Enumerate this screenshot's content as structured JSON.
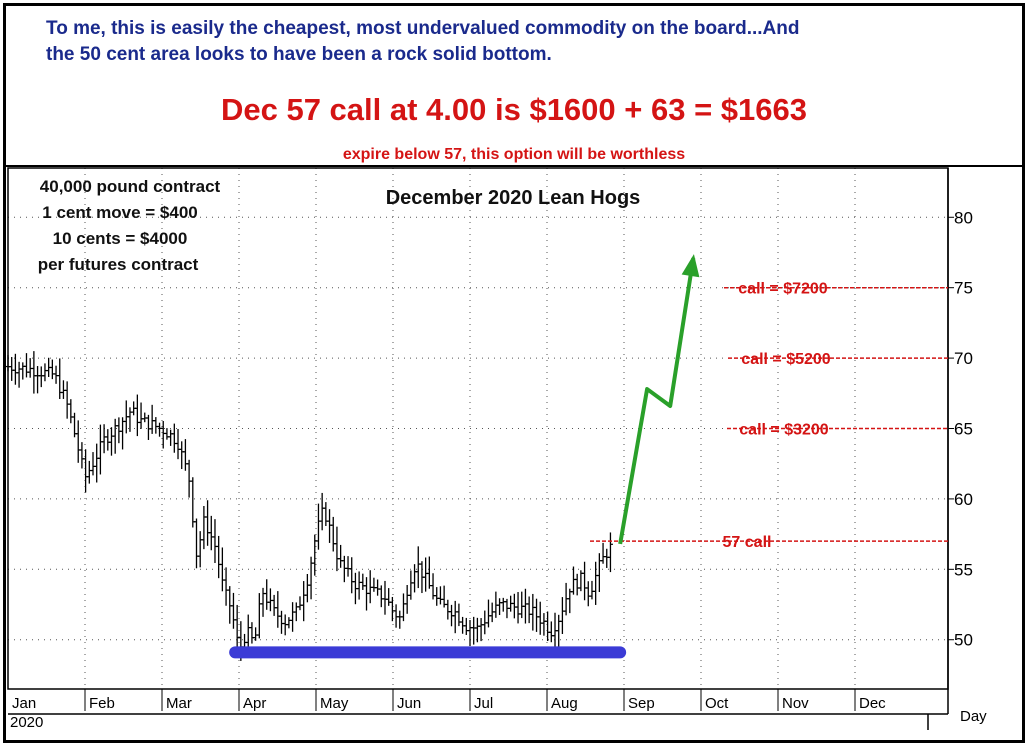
{
  "header": {
    "line1": "To me, this is easily the cheapest, most undervalued commodity on the board...And",
    "line2": "the 50 cent area looks to have been a rock solid bottom.",
    "headline": "Dec 57 call at 4.00 is $1600 + 63 = $1663",
    "subnote": "expire below 57, this option will be worthless"
  },
  "contract_info": [
    "40,000 pound contract",
    "1 cent move = $400",
    "10 cents = $4000",
    "per futures contract"
  ],
  "colors": {
    "header_text": "#1a2a8c",
    "accent_red": "#d41414",
    "support_line": "#3b3bd6",
    "projection_arrow": "#2aa02a",
    "price_bars": "#000000"
  },
  "chart_data": {
    "type": "ohlc-bar",
    "title": "December 2020 Lean Hogs",
    "x_axis": {
      "months": [
        "Jan",
        "Feb",
        "Mar",
        "Apr",
        "May",
        "Jun",
        "Jul",
        "Aug",
        "Sep",
        "Oct",
        "Nov",
        "Dec"
      ],
      "year": "2020",
      "period_label": "Day"
    },
    "y_axis": {
      "ticks": [
        50,
        55,
        60,
        65,
        70,
        75,
        80
      ],
      "range": [
        46.5,
        83.5
      ],
      "side": "right"
    },
    "grid": "dotted",
    "price_path": [
      [
        0,
        69.4
      ],
      [
        0.3,
        69.2
      ],
      [
        0.6,
        68.8
      ],
      [
        0.75,
        67
      ],
      [
        0.85,
        65
      ],
      [
        1.0,
        61.5
      ],
      [
        1.1,
        62.5
      ],
      [
        1.25,
        64.2
      ],
      [
        1.45,
        65.3
      ],
      [
        1.6,
        66.3
      ],
      [
        1.7,
        65.6
      ],
      [
        1.9,
        65.2
      ],
      [
        2.05,
        64.8
      ],
      [
        2.2,
        64.1
      ],
      [
        2.35,
        61.5
      ],
      [
        2.45,
        56
      ],
      [
        2.55,
        58.5
      ],
      [
        2.7,
        56.5
      ],
      [
        2.8,
        53.5
      ],
      [
        2.9,
        52.2
      ],
      [
        3.0,
        49.2
      ],
      [
        3.1,
        50.6
      ],
      [
        3.2,
        49.7
      ],
      [
        3.3,
        53.5
      ],
      [
        3.45,
        52
      ],
      [
        3.6,
        51.3
      ],
      [
        3.75,
        52
      ],
      [
        3.9,
        54.5
      ],
      [
        4.0,
        57.5
      ],
      [
        4.1,
        59.3
      ],
      [
        4.2,
        57.5
      ],
      [
        4.3,
        55.5
      ],
      [
        4.5,
        54
      ],
      [
        4.7,
        53.5
      ],
      [
        4.9,
        53
      ],
      [
        5.0,
        52
      ],
      [
        5.1,
        51.5
      ],
      [
        5.2,
        54
      ],
      [
        5.3,
        55.5
      ],
      [
        5.45,
        54
      ],
      [
        5.6,
        52.5
      ],
      [
        5.8,
        52
      ],
      [
        5.95,
        51
      ],
      [
        6.1,
        50.8
      ],
      [
        6.25,
        51.8
      ],
      [
        6.4,
        52.5
      ],
      [
        6.6,
        52.3
      ],
      [
        6.8,
        52
      ],
      [
        6.95,
        51.3
      ],
      [
        7.05,
        50.6
      ],
      [
        7.15,
        51.5
      ],
      [
        7.3,
        53.8
      ],
      [
        7.45,
        54.3
      ],
      [
        7.55,
        53.3
      ],
      [
        7.7,
        55.5
      ],
      [
        7.8,
        56.4
      ],
      [
        7.85,
        56.7
      ]
    ],
    "support": {
      "level": 49.1,
      "from": 2.95,
      "to": 7.95
    },
    "projection_arrow": [
      [
        7.95,
        56.8
      ],
      [
        8.3,
        67.8
      ],
      [
        8.6,
        66.6
      ],
      [
        8.9,
        77.1
      ]
    ],
    "call_levels": [
      {
        "label": "call = $7200",
        "value": 75
      },
      {
        "label": "call = $5200",
        "value": 70
      },
      {
        "label": "call = $3200",
        "value": 65
      },
      {
        "label": "57 call",
        "value": 57
      }
    ]
  }
}
